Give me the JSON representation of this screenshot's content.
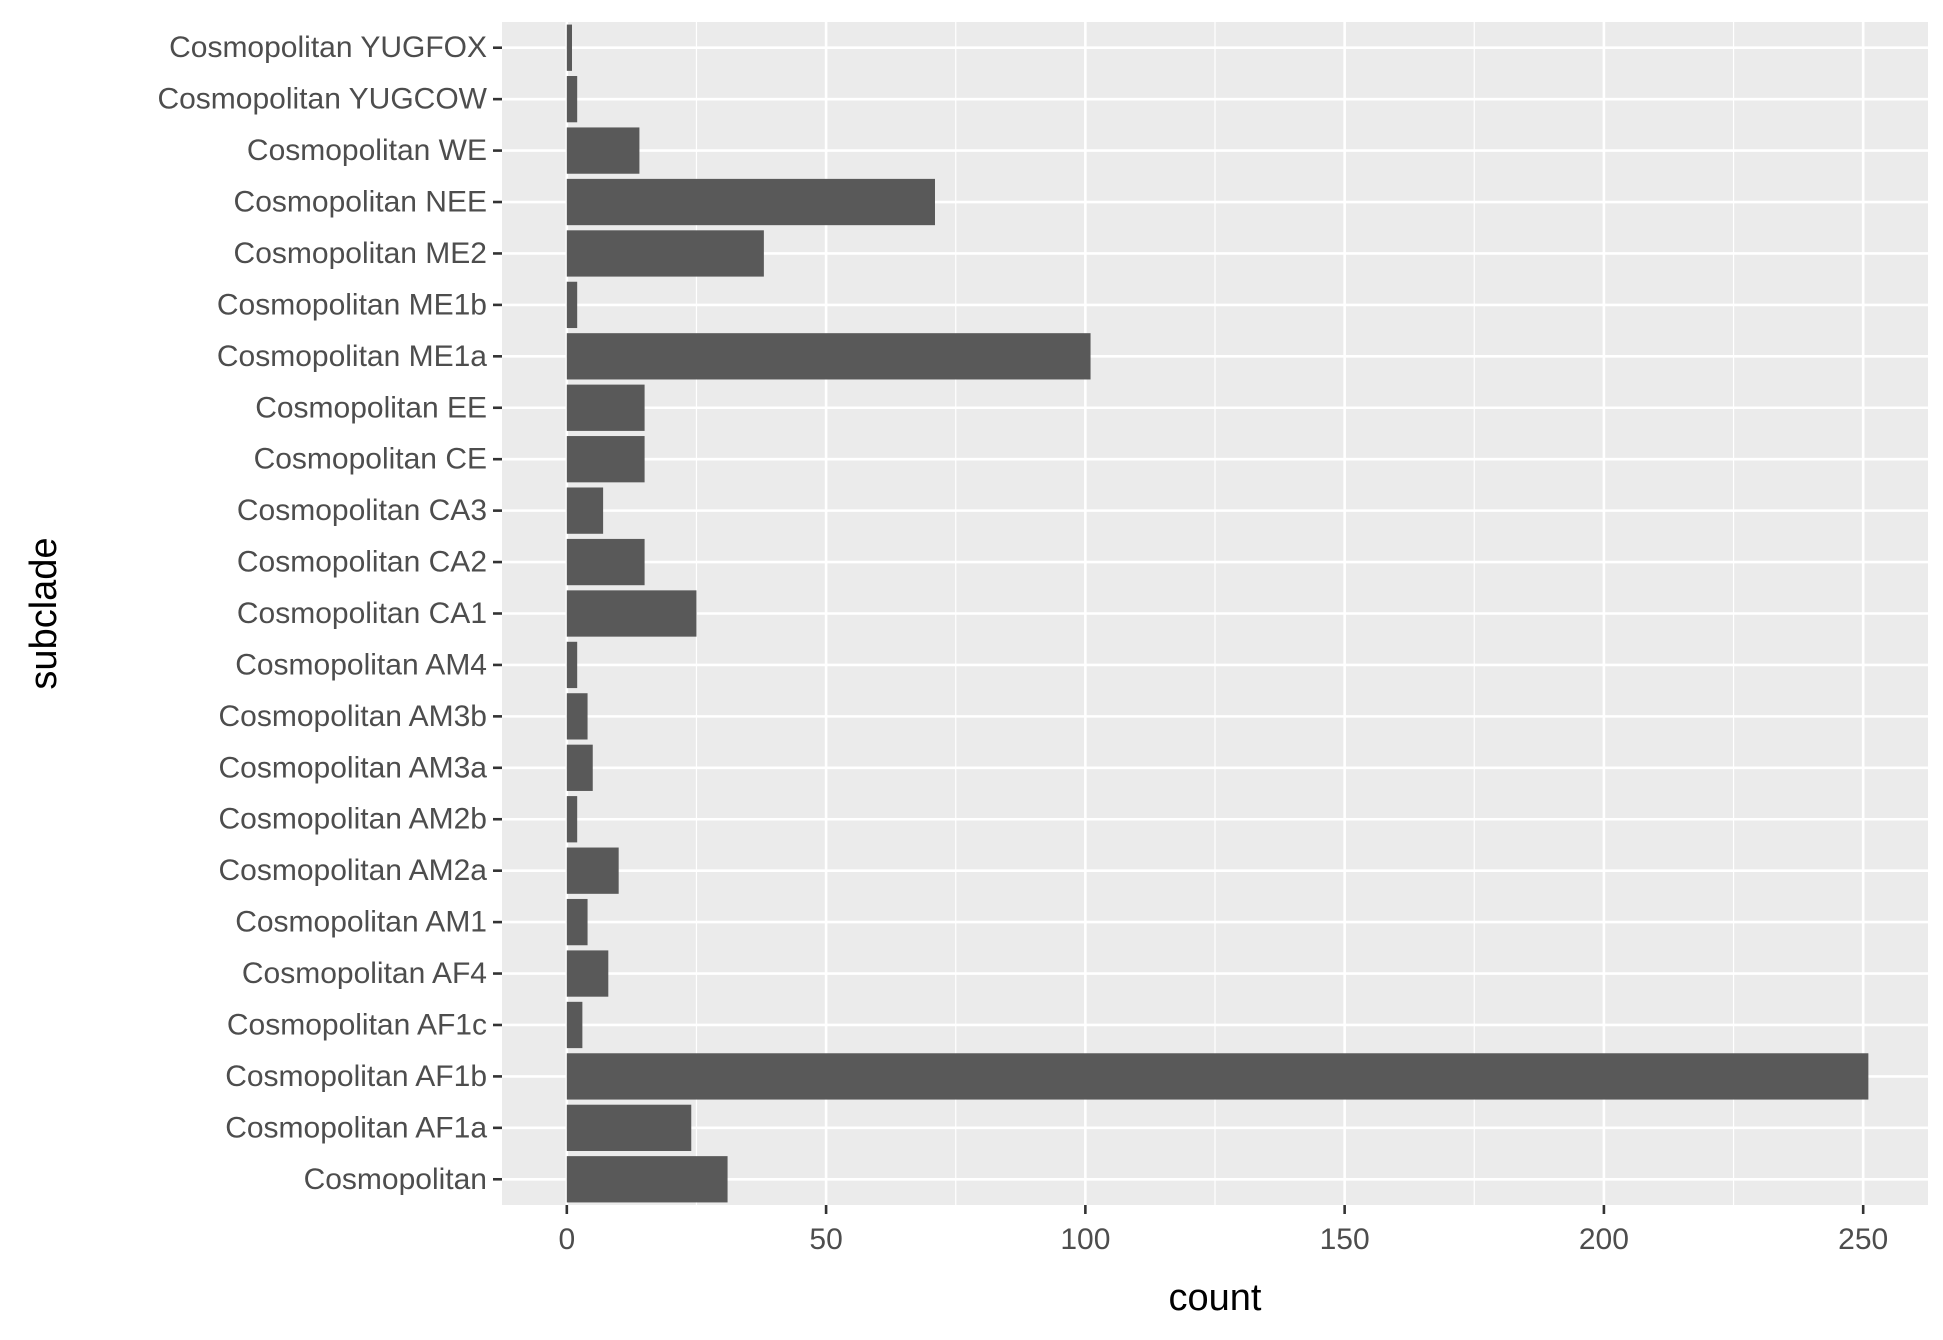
{
  "chart_data": {
    "type": "bar",
    "orientation": "horizontal",
    "xlabel": "count",
    "ylabel": "subclade",
    "xlim": [
      -12.5,
      262.5
    ],
    "x_ticks": [
      0,
      50,
      100,
      150,
      200,
      250
    ],
    "x_tick_labels": [
      "0",
      "50",
      "100",
      "150",
      "200",
      "250"
    ],
    "grid": true,
    "bar_color": "#595959",
    "panel_background": "#ebebeb",
    "grid_color": "#ffffff",
    "categories": [
      "Cosmopolitan YUGFOX",
      "Cosmopolitan YUGCOW",
      "Cosmopolitan WE",
      "Cosmopolitan NEE",
      "Cosmopolitan ME2",
      "Cosmopolitan ME1b",
      "Cosmopolitan ME1a",
      "Cosmopolitan EE",
      "Cosmopolitan CE",
      "Cosmopolitan CA3",
      "Cosmopolitan CA2",
      "Cosmopolitan CA1",
      "Cosmopolitan AM4",
      "Cosmopolitan AM3b",
      "Cosmopolitan AM3a",
      "Cosmopolitan AM2b",
      "Cosmopolitan AM2a",
      "Cosmopolitan AM1",
      "Cosmopolitan AF4",
      "Cosmopolitan AF1c",
      "Cosmopolitan AF1b",
      "Cosmopolitan AF1a",
      "Cosmopolitan"
    ],
    "values": [
      1,
      2,
      14,
      71,
      38,
      2,
      101,
      15,
      15,
      7,
      15,
      25,
      2,
      4,
      5,
      2,
      10,
      4,
      8,
      3,
      251,
      24,
      31
    ]
  }
}
